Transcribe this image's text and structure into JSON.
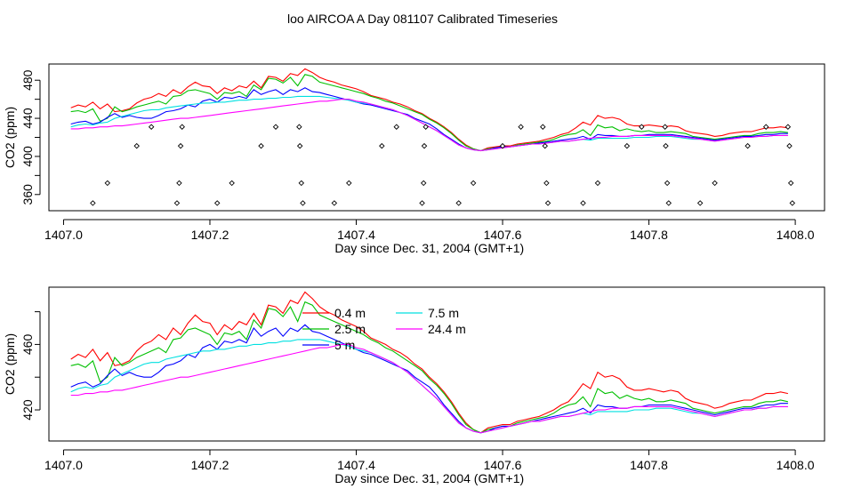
{
  "title": "loo AIRCOA A  Day 081107  Calibrated Timeseries",
  "colors": {
    "0.4 m": "#ff0000",
    "2.5 m": "#00c000",
    "5 m": "#0000ff",
    "7.5 m": "#00e0e0",
    "24.4 m": "#ff00ff",
    "axes": "#000000",
    "background": "#ffffff"
  },
  "chart_data": [
    {
      "type": "line",
      "ylabel": "CO2 (ppm)",
      "xlabel": "Day since Dec. 31, 2004 (GMT+1)",
      "xlim": [
        1406.98,
        1408.04
      ],
      "ylim": [
        343,
        497
      ],
      "xticks": [
        "1407.0",
        "1407.2",
        "1407.4",
        "1407.6",
        "1407.8",
        "1408.0"
      ],
      "yticks": [
        "360",
        "400",
        "440",
        "480"
      ],
      "ytick_values": [
        360,
        380,
        400,
        420,
        440,
        460,
        480
      ],
      "ytick_labels": [
        "360",
        "",
        "400",
        "",
        "440",
        "",
        "480"
      ],
      "x": [
        1407.01,
        1407.02,
        1407.03,
        1407.04,
        1407.05,
        1407.06,
        1407.07,
        1407.08,
        1407.09,
        1407.1,
        1407.11,
        1407.12,
        1407.13,
        1407.14,
        1407.15,
        1407.16,
        1407.17,
        1407.18,
        1407.19,
        1407.2,
        1407.21,
        1407.22,
        1407.23,
        1407.24,
        1407.25,
        1407.26,
        1407.27,
        1407.28,
        1407.29,
        1407.3,
        1407.31,
        1407.32,
        1407.33,
        1407.34,
        1407.35,
        1407.36,
        1407.37,
        1407.38,
        1407.39,
        1407.4,
        1407.41,
        1407.42,
        1407.43,
        1407.44,
        1407.45,
        1407.46,
        1407.47,
        1407.48,
        1407.49,
        1407.5,
        1407.51,
        1407.52,
        1407.53,
        1407.54,
        1407.55,
        1407.56,
        1407.57,
        1407.58,
        1407.59,
        1407.6,
        1407.61,
        1407.62,
        1407.63,
        1407.64,
        1407.65,
        1407.66,
        1407.67,
        1407.68,
        1407.69,
        1407.7,
        1407.71,
        1407.72,
        1407.73,
        1407.74,
        1407.75,
        1407.76,
        1407.77,
        1407.78,
        1407.79,
        1407.8,
        1407.81,
        1407.82,
        1407.83,
        1407.84,
        1407.85,
        1407.86,
        1407.87,
        1407.88,
        1407.89,
        1407.9,
        1407.91,
        1407.92,
        1407.93,
        1407.94,
        1407.95,
        1407.96,
        1407.97,
        1407.98,
        1407.99
      ],
      "series": [
        {
          "name": "0.4 m",
          "values": [
            451,
            454,
            452,
            457,
            450,
            455,
            447,
            448,
            450,
            456,
            460,
            462,
            466,
            463,
            470,
            466,
            473,
            478,
            474,
            473,
            466,
            472,
            469,
            474,
            472,
            479,
            472,
            484,
            483,
            479,
            487,
            485,
            492,
            488,
            483,
            480,
            478,
            475,
            473,
            471,
            468,
            464,
            462,
            460,
            457,
            455,
            452,
            448,
            445,
            440,
            436,
            431,
            425,
            418,
            412,
            408,
            406,
            409,
            410,
            411,
            411,
            413,
            414,
            415,
            416,
            418,
            420,
            423,
            425,
            430,
            436,
            433,
            443,
            440,
            441,
            439,
            434,
            432,
            432,
            433,
            432,
            431,
            432,
            431,
            427,
            425,
            424,
            423,
            421,
            422,
            424,
            425,
            426,
            426,
            428,
            430,
            430,
            431,
            430
          ]
        },
        {
          "name": "2.5 m",
          "values": [
            447,
            448,
            446,
            450,
            437,
            440,
            452,
            447,
            449,
            452,
            454,
            456,
            458,
            455,
            463,
            464,
            469,
            470,
            468,
            466,
            460,
            467,
            466,
            468,
            463,
            475,
            470,
            482,
            481,
            477,
            483,
            474,
            486,
            484,
            478,
            476,
            474,
            472,
            470,
            468,
            466,
            463,
            461,
            458,
            456,
            453,
            450,
            447,
            444,
            439,
            435,
            430,
            424,
            417,
            411,
            408,
            406,
            408,
            409,
            410,
            410,
            412,
            413,
            414,
            415,
            416,
            418,
            421,
            423,
            424,
            428,
            422,
            433,
            430,
            431,
            427,
            429,
            427,
            426,
            427,
            425,
            425,
            426,
            425,
            424,
            421,
            420,
            419,
            418,
            419,
            420,
            421,
            422,
            422,
            424,
            425,
            425,
            426,
            425
          ]
        },
        {
          "name": "5 m",
          "values": [
            434,
            436,
            437,
            434,
            436,
            441,
            445,
            441,
            443,
            441,
            440,
            440,
            443,
            447,
            448,
            450,
            454,
            452,
            458,
            460,
            457,
            462,
            461,
            463,
            461,
            470,
            465,
            468,
            470,
            465,
            470,
            468,
            472,
            468,
            467,
            465,
            463,
            461,
            459,
            457,
            455,
            454,
            452,
            450,
            448,
            446,
            444,
            440,
            437,
            434,
            429,
            423,
            418,
            413,
            409,
            407,
            406,
            407,
            409,
            410,
            410,
            411,
            412,
            413,
            414,
            415,
            416,
            417,
            418,
            419,
            421,
            418,
            423,
            422,
            422,
            421,
            421,
            422,
            422,
            423,
            423,
            423,
            423,
            422,
            421,
            420,
            419,
            418,
            417,
            418,
            419,
            420,
            421,
            421,
            422,
            423,
            423,
            424,
            424
          ]
        },
        {
          "name": "7.5 m",
          "values": [
            431,
            433,
            434,
            433,
            435,
            436,
            440,
            442,
            444,
            446,
            448,
            449,
            449,
            451,
            452,
            453,
            454,
            455,
            456,
            456,
            457,
            457,
            458,
            459,
            459,
            460,
            460,
            461,
            461,
            462,
            462,
            463,
            463,
            463,
            463,
            462,
            461,
            460,
            459,
            457,
            456,
            455,
            453,
            451,
            449,
            446,
            443,
            439,
            435,
            431,
            427,
            422,
            417,
            412,
            409,
            407,
            406,
            407,
            408,
            409,
            410,
            411,
            412,
            413,
            413,
            414,
            415,
            416,
            416,
            417,
            418,
            417,
            419,
            419,
            419,
            419,
            419,
            420,
            420,
            420,
            421,
            421,
            421,
            420,
            419,
            418,
            418,
            417,
            416,
            417,
            418,
            419,
            420,
            420,
            421,
            421,
            422,
            422,
            422
          ]
        },
        {
          "name": "24.4 m",
          "values": [
            429,
            429,
            430,
            430,
            431,
            431,
            432,
            432,
            433,
            434,
            435,
            436,
            437,
            438,
            439,
            440,
            440,
            441,
            442,
            443,
            444,
            445,
            446,
            447,
            448,
            449,
            450,
            451,
            452,
            453,
            454,
            455,
            456,
            457,
            458,
            458,
            459,
            460,
            460,
            458,
            457,
            455,
            453,
            451,
            449,
            446,
            443,
            439,
            435,
            431,
            427,
            422,
            417,
            412,
            409,
            407,
            406,
            407,
            408,
            409,
            410,
            411,
            412,
            413,
            413,
            414,
            415,
            416,
            416,
            417,
            418,
            419,
            420,
            420,
            421,
            421,
            421,
            422,
            422,
            422,
            422,
            422,
            422,
            421,
            420,
            419,
            418,
            417,
            416,
            417,
            418,
            419,
            420,
            420,
            421,
            421,
            422,
            422,
            422
          ]
        }
      ],
      "markers": {
        "shape": "diamond",
        "points": [
          [
            1407.04,
            351
          ],
          [
            1407.06,
            372
          ],
          [
            1407.1,
            411
          ],
          [
            1407.12,
            431
          ],
          [
            1407.155,
            351
          ],
          [
            1407.158,
            372
          ],
          [
            1407.16,
            411
          ],
          [
            1407.162,
            431
          ],
          [
            1407.21,
            351
          ],
          [
            1407.23,
            372
          ],
          [
            1407.27,
            411
          ],
          [
            1407.29,
            431
          ],
          [
            1407.322,
            431
          ],
          [
            1407.323,
            411
          ],
          [
            1407.325,
            372
          ],
          [
            1407.327,
            351
          ],
          [
            1407.37,
            351
          ],
          [
            1407.39,
            372
          ],
          [
            1407.435,
            411
          ],
          [
            1407.455,
            431
          ],
          [
            1407.49,
            351
          ],
          [
            1407.492,
            372
          ],
          [
            1407.493,
            411
          ],
          [
            1407.495,
            431
          ],
          [
            1407.54,
            351
          ],
          [
            1407.56,
            372
          ],
          [
            1407.6,
            411
          ],
          [
            1407.625,
            431
          ],
          [
            1407.655,
            431
          ],
          [
            1407.658,
            411
          ],
          [
            1407.66,
            372
          ],
          [
            1407.662,
            351
          ],
          [
            1407.71,
            351
          ],
          [
            1407.73,
            372
          ],
          [
            1407.77,
            411
          ],
          [
            1407.79,
            431
          ],
          [
            1407.822,
            431
          ],
          [
            1407.823,
            411
          ],
          [
            1407.825,
            372
          ],
          [
            1407.827,
            351
          ],
          [
            1407.87,
            351
          ],
          [
            1407.89,
            372
          ],
          [
            1407.935,
            411
          ],
          [
            1407.96,
            431
          ],
          [
            1407.99,
            431
          ],
          [
            1407.992,
            411
          ],
          [
            1407.994,
            372
          ],
          [
            1407.996,
            351
          ]
        ]
      }
    },
    {
      "type": "line",
      "ylabel": "CO2 (ppm)",
      "xlabel": "Day since Dec. 31, 2004 (GMT+1)",
      "xlim": [
        1406.98,
        1408.04
      ],
      "ylim": [
        401,
        495
      ],
      "xticks": [
        "1407.0",
        "1407.2",
        "1407.4",
        "1407.6",
        "1407.8",
        "1408.0"
      ],
      "yticks": [
        "420",
        "460"
      ],
      "ytick_values": [
        420,
        440,
        460,
        480
      ],
      "ytick_labels": [
        "420",
        "",
        "460",
        ""
      ],
      "legend": [
        {
          "label": "0.4 m",
          "color": "#ff0000"
        },
        {
          "label": "2.5 m",
          "color": "#00c000"
        },
        {
          "label": "5 m",
          "color": "#0000ff"
        },
        {
          "label": "7.5 m",
          "color": "#00e0e0"
        },
        {
          "label": "24.4 m",
          "color": "#ff00ff"
        }
      ],
      "legend_position": "top-center"
    }
  ]
}
